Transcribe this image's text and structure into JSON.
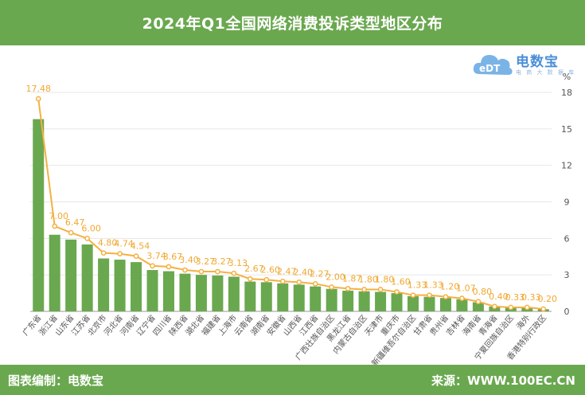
{
  "header": {
    "title": "2024年Q1全国网络消费投诉类型地区分布"
  },
  "footer": {
    "left_text": "图表编制：电数宝",
    "right_text": "来源：WWW.100EC.CN"
  },
  "logo": {
    "text": "电数宝",
    "subtext": "电 商 大 数 据 库",
    "badge": "eDT"
  },
  "colors": {
    "header_bg": "#6aa84f",
    "bar": "#6aa84f",
    "line": "#f5b041",
    "label": "#f0a830",
    "axis_text": "#555555"
  },
  "chart_data": {
    "type": "bar",
    "title": "2024年Q1全国网络消费投诉类型地区分布",
    "unit_label": "%",
    "categories": [
      "广东省",
      "浙江省",
      "山东省",
      "江苏省",
      "北京市",
      "河北省",
      "河南省",
      "辽宁省",
      "四川省",
      "陕西省",
      "湖北省",
      "福建省",
      "上海市",
      "云南省",
      "湖南省",
      "安徽省",
      "山西省",
      "江西省",
      "广西壮族自治区",
      "黑龙江省",
      "内蒙古自治区",
      "天津市",
      "重庆市",
      "新疆维吾尔自治区",
      "甘肃省",
      "贵州省",
      "吉林省",
      "海南省",
      "青海省",
      "宁夏回族自治区",
      "海外",
      "香港特别行政区"
    ],
    "bar_values": [
      15.8,
      6.3,
      5.9,
      5.5,
      4.35,
      4.25,
      4.05,
      3.4,
      3.3,
      3.1,
      3.0,
      2.95,
      2.85,
      2.45,
      2.4,
      2.3,
      2.2,
      2.05,
      1.85,
      1.7,
      1.65,
      1.6,
      1.5,
      1.25,
      1.2,
      1.1,
      1.0,
      0.75,
      0.4,
      0.3,
      0.3,
      0.18
    ],
    "line_values": [
      17.48,
      7.0,
      6.47,
      6.0,
      4.8,
      4.74,
      4.54,
      3.74,
      3.67,
      3.4,
      3.27,
      3.27,
      3.13,
      2.67,
      2.6,
      2.47,
      2.4,
      2.27,
      2.0,
      1.87,
      1.8,
      1.8,
      1.6,
      1.33,
      1.33,
      1.2,
      1.07,
      0.8,
      0.4,
      0.33,
      0.33,
      0.2
    ],
    "line_labels": [
      "17.48",
      "7.00",
      "6.47",
      "6.00",
      "4.80",
      "4.74",
      "4.54",
      "3.74",
      "3.67",
      "3.40",
      "3.27",
      "3.27",
      "3.13",
      "2.67",
      "2.60",
      "2.47",
      "2.40",
      "2.27",
      "2.00",
      "1.87",
      "1.80",
      "1.80",
      "1.60",
      "1.33",
      "1.33",
      "1.20",
      "1.07",
      "0.80",
      "0.40",
      "0.33",
      "0.33",
      "0.20"
    ],
    "y_ticks": [
      "0",
      "3",
      "6",
      "9",
      "12",
      "15",
      "18"
    ],
    "ylim": [
      0,
      18
    ],
    "y_axis_position": "right",
    "grid": true
  }
}
